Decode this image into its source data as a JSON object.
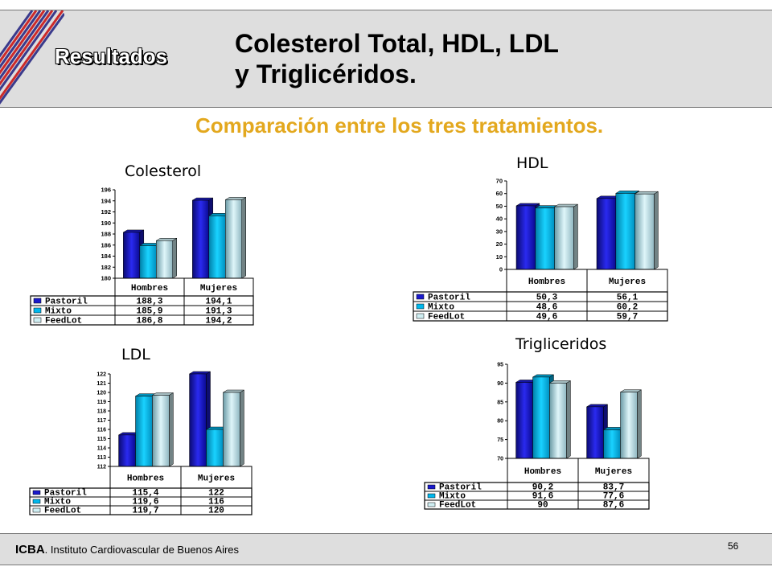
{
  "header": {
    "section": "Resultados",
    "title_line1": "Colesterol Total, HDL, LDL",
    "title_line2": "y Triglicéridos."
  },
  "subtitle": "Comparación entre los tres tratamientos.",
  "footer": {
    "org_short": "ICBA",
    "org_full": ". Instituto Cardiovascular de Buenos Aires",
    "page": "56"
  },
  "colors": {
    "Pastoril": "#1a1acc",
    "Mixto": "#00b8ee",
    "FeedLot": "#cfeef2",
    "accent": "#e3a81e"
  },
  "chart_data": [
    {
      "type": "bar",
      "title": "Colesterol",
      "categories": [
        "Hombres",
        "Mujeres"
      ],
      "series": [
        {
          "name": "Pastoril",
          "values": [
            188.3,
            194.1
          ]
        },
        {
          "name": "Mixto",
          "values": [
            185.9,
            191.3
          ]
        },
        {
          "name": "FeedLot",
          "values": [
            186.8,
            194.2
          ]
        }
      ],
      "ylim": [
        180,
        196
      ],
      "yticks": [
        180,
        182,
        184,
        186,
        188,
        190,
        192,
        194,
        196
      ],
      "value_labels": [
        [
          "188,3",
          "194,1"
        ],
        [
          "185,9",
          "191,3"
        ],
        [
          "186,8",
          "194,2"
        ]
      ]
    },
    {
      "type": "bar",
      "title": "HDL",
      "categories": [
        "Hombres",
        "Mujeres"
      ],
      "series": [
        {
          "name": "Pastoril",
          "values": [
            50.3,
            56.1
          ]
        },
        {
          "name": "Mixto",
          "values": [
            48.6,
            60.2
          ]
        },
        {
          "name": "FeedLot",
          "values": [
            49.6,
            59.7
          ]
        }
      ],
      "ylim": [
        0,
        70
      ],
      "yticks": [
        0,
        10,
        20,
        30,
        40,
        50,
        60,
        70
      ],
      "value_labels": [
        [
          "50,3",
          "56,1"
        ],
        [
          "48,6",
          "60,2"
        ],
        [
          "49,6",
          "59,7"
        ]
      ]
    },
    {
      "type": "bar",
      "title": "LDL",
      "categories": [
        "Hombres",
        "Mujeres"
      ],
      "series": [
        {
          "name": "Pastoril",
          "values": [
            115.4,
            122
          ]
        },
        {
          "name": "Mixto",
          "values": [
            119.6,
            116
          ]
        },
        {
          "name": "FeedLot",
          "values": [
            119.7,
            120
          ]
        }
      ],
      "ylim": [
        112,
        122
      ],
      "yticks": [
        112,
        113,
        114,
        115,
        116,
        117,
        118,
        119,
        120,
        121,
        122
      ],
      "value_labels": [
        [
          "115,4",
          "122"
        ],
        [
          "119,6",
          "116"
        ],
        [
          "119,7",
          "120"
        ]
      ]
    },
    {
      "type": "bar",
      "title": "Trigliceridos",
      "categories": [
        "Hombres",
        "Mujeres"
      ],
      "series": [
        {
          "name": "Pastoril",
          "values": [
            90.2,
            83.7
          ]
        },
        {
          "name": "Mixto",
          "values": [
            91.6,
            77.6
          ]
        },
        {
          "name": "FeedLot",
          "values": [
            90,
            87.6
          ]
        }
      ],
      "ylim": [
        70,
        95
      ],
      "yticks": [
        70,
        75,
        80,
        85,
        90,
        95
      ],
      "value_labels": [
        [
          "90,2",
          "83,7"
        ],
        [
          "91,6",
          "77,6"
        ],
        [
          "90",
          "87,6"
        ]
      ]
    }
  ]
}
